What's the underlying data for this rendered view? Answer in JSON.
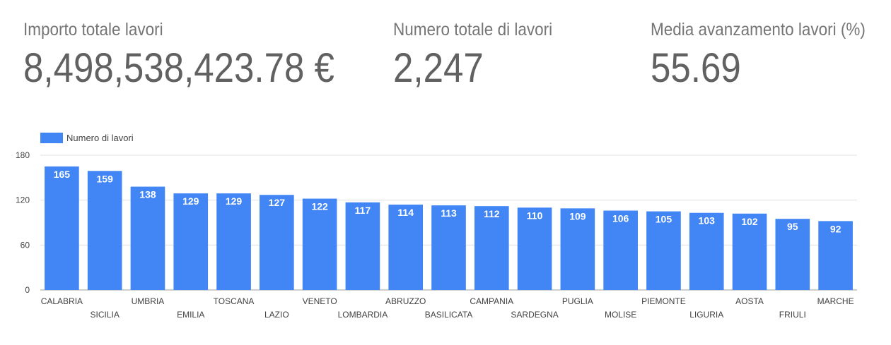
{
  "kpis": [
    {
      "label": "Importo totale lavori",
      "value": "8,498,538,423.78 €"
    },
    {
      "label": "Numero totale di lavori",
      "value": "2,247"
    },
    {
      "label": "Media avanzamento lavori (%)",
      "value": "55.69"
    }
  ],
  "colors": {
    "bar": "#4285f4",
    "bar_label": "#ffffff",
    "axis_text": "#424242",
    "grid": "#e0e0e0",
    "axis_line": "#9e9e9e"
  },
  "chart_data": {
    "type": "bar",
    "title": "",
    "xlabel": "",
    "ylabel": "",
    "categories": [
      "CALABRIA",
      "SICILIA",
      "UMBRIA",
      "EMILIA",
      "TOSCANA",
      "LAZIO",
      "VENETO",
      "LOMBARDIA",
      "ABRUZZO",
      "BASILICATA",
      "CAMPANIA",
      "SARDEGNA",
      "PUGLIA",
      "MOLISE",
      "PIEMONTE",
      "LIGURIA",
      "AOSTA",
      "FRIULI",
      "MARCHE"
    ],
    "series": [
      {
        "name": "Numero di lavori",
        "values": [
          165,
          159,
          138,
          129,
          129,
          127,
          122,
          117,
          114,
          113,
          112,
          110,
          109,
          106,
          105,
          103,
          102,
          95,
          92
        ]
      }
    ],
    "ylim": [
      0,
      180
    ],
    "yticks": [
      0,
      60,
      120,
      180
    ],
    "grid": true,
    "legend": "top-left",
    "data_labels": true
  }
}
